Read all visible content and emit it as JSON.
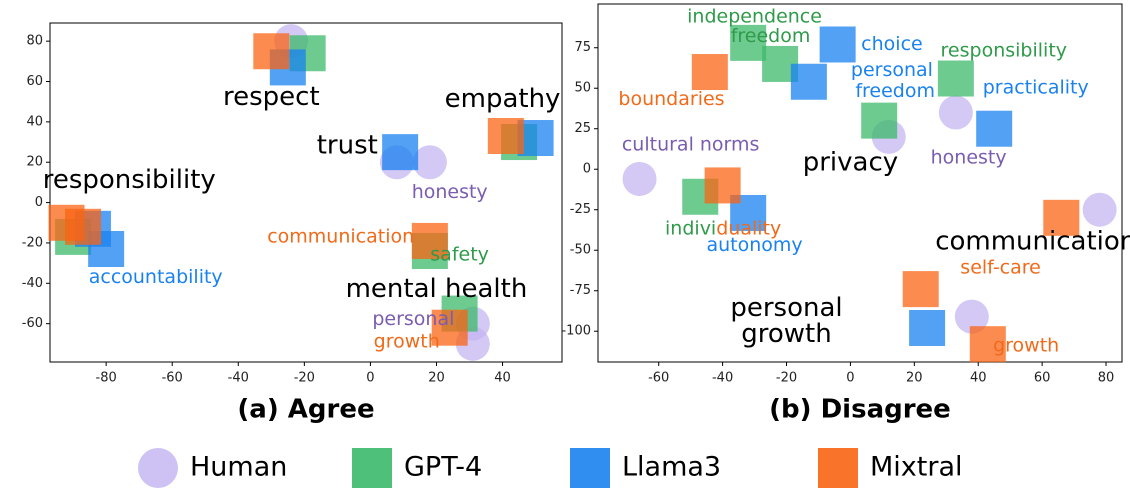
{
  "chart_data": [
    {
      "type": "scatter",
      "subtitle": "(a) Agree",
      "xlim": [
        -97,
        58
      ],
      "ylim": [
        -79,
        89
      ],
      "xticks": [
        -80,
        -60,
        -40,
        -20,
        0,
        20,
        40
      ],
      "yticks": [
        -60,
        -40,
        -20,
        0,
        20,
        40,
        60,
        80
      ],
      "series": [
        {
          "name": "Human",
          "color": "#c6b6f2",
          "marker": "circle",
          "x": [
            -24,
            8,
            18,
            31,
            31
          ],
          "y": [
            80,
            20,
            20,
            -60,
            -70
          ]
        },
        {
          "name": "GPT-4",
          "color": "#3cb96a",
          "marker": "square",
          "x": [
            -19,
            45,
            -90,
            18,
            27
          ],
          "y": [
            74,
            30,
            -17,
            -24,
            -55
          ]
        },
        {
          "name": "Llama3",
          "color": "#1a82f0",
          "marker": "square",
          "x": [
            -25,
            50,
            9,
            -84,
            -80
          ],
          "y": [
            67,
            32,
            25,
            -13,
            -23
          ]
        },
        {
          "name": "Mixtral",
          "color": "#f96414",
          "marker": "square",
          "x": [
            -30,
            41,
            -92,
            -87,
            18,
            24
          ],
          "y": [
            75,
            33,
            -10,
            -12,
            -19,
            -62
          ]
        }
      ],
      "annotations": [
        {
          "text": "respect",
          "x": -30,
          "y": 52,
          "color": "#000000"
        },
        {
          "text": "empathy",
          "x": 40,
          "y": 51,
          "color": "#000000"
        },
        {
          "text": "trust",
          "x": -7,
          "y": 28,
          "color": "#000000"
        },
        {
          "text": "honesty",
          "x": 24,
          "y": 5,
          "color": "#7a5cb0"
        },
        {
          "text": "responsibility",
          "x": -73,
          "y": 11,
          "color": "#000000"
        },
        {
          "text": "communication",
          "x": -9,
          "y": -17,
          "color": "#f06a1a"
        },
        {
          "text": "safety",
          "x": 27,
          "y": -26,
          "color": "#2e9a4a"
        },
        {
          "text": "accountability",
          "x": -65,
          "y": -37,
          "color": "#1a82f0"
        },
        {
          "text": "mental health",
          "x": 20,
          "y": -43,
          "color": "#000000"
        },
        {
          "text": "personal",
          "x": 13,
          "y": -58,
          "color": "#7a5cb0"
        },
        {
          "text": "growth",
          "x": 11,
          "y": -69,
          "color": "#f06a1a"
        }
      ]
    },
    {
      "type": "scatter",
      "subtitle": "(b) Disagree",
      "xlim": [
        -79,
        85
      ],
      "ylim": [
        -119,
        102
      ],
      "xticks": [
        -60,
        -40,
        -20,
        0,
        20,
        40,
        60,
        80
      ],
      "yticks": [
        -100,
        -75,
        -50,
        -25,
        0,
        25,
        50,
        75
      ],
      "series": [
        {
          "name": "Human",
          "color": "#c6b6f2",
          "marker": "circle",
          "x": [
            -66,
            12,
            33,
            38,
            78
          ],
          "y": [
            -6,
            20,
            35,
            -91,
            -25
          ]
        },
        {
          "name": "GPT-4",
          "color": "#3cb96a",
          "marker": "square",
          "x": [
            -47,
            -32,
            -22,
            9,
            33
          ],
          "y": [
            -17,
            78,
            65,
            30,
            56
          ]
        },
        {
          "name": "Llama3",
          "color": "#1a82f0",
          "marker": "square",
          "x": [
            -32,
            -4,
            -13,
            45,
            24
          ],
          "y": [
            -27,
            77,
            54,
            25,
            -98
          ]
        },
        {
          "name": "Mixtral",
          "color": "#f96414",
          "marker": "square",
          "x": [
            -44,
            -40,
            66,
            22,
            43
          ],
          "y": [
            60,
            -10,
            -30,
            -74,
            -108
          ]
        }
      ],
      "annotations": [
        {
          "text": "independence",
          "x": -30,
          "y": 94,
          "color": "#2e9a4a"
        },
        {
          "text": "freedom",
          "x": -25,
          "y": 82,
          "color": "#2e9a4a"
        },
        {
          "text": "choice",
          "x": 13,
          "y": 77,
          "color": "#1a82f0"
        },
        {
          "text": "responsibility",
          "x": 48,
          "y": 73,
          "color": "#2e9a4a"
        },
        {
          "text": "personal",
          "x": 13,
          "y": 61,
          "color": "#1a82f0"
        },
        {
          "text": "freedom",
          "x": 14,
          "y": 48,
          "color": "#1a82f0"
        },
        {
          "text": "boundaries",
          "x": -56,
          "y": 43,
          "color": "#f06a1a"
        },
        {
          "text": "practicality",
          "x": 58,
          "y": 50,
          "color": "#1a82f0"
        },
        {
          "text": "cultural norms",
          "x": -50,
          "y": 15,
          "color": "#7a5cb0"
        },
        {
          "text": "privacy",
          "x": 0,
          "y": 4,
          "color": "#000000"
        },
        {
          "text": "honesty",
          "x": 37,
          "y": 7,
          "color": "#7a5cb0"
        },
        {
          "text": "indivi",
          "x": -42,
          "y": -37,
          "color": "#2e9a4a",
          "anchor": "end"
        },
        {
          "text": "duality",
          "x": -42,
          "y": -37,
          "color": "#f06a1a",
          "anchor": "start"
        },
        {
          "text": "communication",
          "x": 58,
          "y": -45,
          "color": "#000000"
        },
        {
          "text": "self-care",
          "x": 47,
          "y": -61,
          "color": "#f06a1a"
        },
        {
          "text": "autonomy",
          "x": -30,
          "y": -47,
          "color": "#1a82f0"
        },
        {
          "text": "personal",
          "x": -20,
          "y": -86,
          "color": "#000000"
        },
        {
          "text": "growth",
          "x": -20,
          "y": -102,
          "color": "#000000"
        },
        {
          "text": "growth",
          "x": 55,
          "y": -109,
          "color": "#f06a1a"
        }
      ]
    }
  ]
}
